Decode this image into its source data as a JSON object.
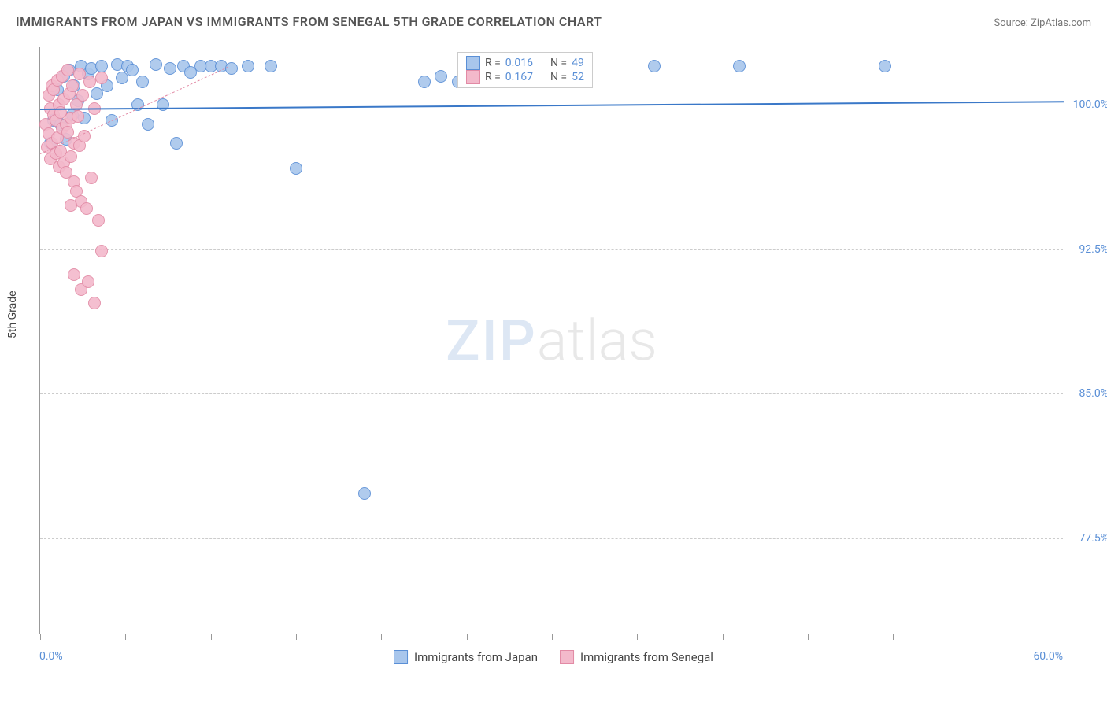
{
  "title": "IMMIGRANTS FROM JAPAN VS IMMIGRANTS FROM SENEGAL 5TH GRADE CORRELATION CHART",
  "source_label": "Source: ZipAtlas.com",
  "y_axis_title": "5th Grade",
  "watermark": {
    "part1": "ZIP",
    "part2": "atlas"
  },
  "chart": {
    "type": "scatter",
    "background_color": "#ffffff",
    "grid_color": "#cccccc",
    "axis_line_color": "#999999",
    "xlim": [
      0.0,
      60.0
    ],
    "ylim": [
      72.5,
      103.0
    ],
    "x_tick_positions": [
      0,
      5,
      10,
      15,
      20,
      25,
      30,
      35,
      40,
      45,
      50,
      55,
      60
    ],
    "x_label_min": "0.0%",
    "x_label_max": "60.0%",
    "y_ticks": [
      {
        "value": 100.0,
        "label": "100.0%"
      },
      {
        "value": 92.5,
        "label": "92.5%"
      },
      {
        "value": 85.0,
        "label": "85.0%"
      },
      {
        "value": 77.5,
        "label": "77.5%"
      }
    ],
    "y_label_color": "#5a8fd6",
    "x_label_color": "#5a8fd6",
    "marker_radius": 8,
    "marker_stroke_width": 1.5,
    "marker_fill_opacity": 0.35,
    "series": [
      {
        "id": "japan",
        "label": "Immigrants from Japan",
        "stroke_color": "#5a8fd6",
        "fill_color": "#a8c6ec",
        "r_value": "0.016",
        "n_value": "49",
        "trend": {
          "x1": 0.0,
          "y1": 99.8,
          "x2": 60.0,
          "y2": 100.2,
          "width": 2.5,
          "dash": "solid",
          "color": "#3a78c8"
        },
        "points": [
          [
            0.6,
            98.0
          ],
          [
            0.8,
            99.2
          ],
          [
            1.0,
            100.8
          ],
          [
            1.2,
            99.0
          ],
          [
            1.4,
            101.5
          ],
          [
            1.5,
            98.2
          ],
          [
            1.7,
            101.8
          ],
          [
            1.9,
            99.5
          ],
          [
            2.0,
            101.0
          ],
          [
            2.2,
            100.2
          ],
          [
            2.4,
            102.0
          ],
          [
            2.6,
            99.3
          ],
          [
            2.8,
            101.6
          ],
          [
            3.0,
            101.9
          ],
          [
            3.3,
            100.6
          ],
          [
            3.6,
            102.0
          ],
          [
            3.9,
            101.0
          ],
          [
            4.2,
            99.2
          ],
          [
            4.5,
            102.1
          ],
          [
            4.8,
            101.4
          ],
          [
            5.1,
            102.0
          ],
          [
            5.4,
            101.8
          ],
          [
            5.7,
            100.0
          ],
          [
            6.0,
            101.2
          ],
          [
            6.3,
            99.0
          ],
          [
            6.8,
            102.1
          ],
          [
            7.2,
            100.0
          ],
          [
            7.6,
            101.9
          ],
          [
            8.0,
            98.0
          ],
          [
            8.4,
            102.0
          ],
          [
            8.8,
            101.7
          ],
          [
            9.4,
            102.0
          ],
          [
            10.0,
            102.0
          ],
          [
            10.6,
            102.0
          ],
          [
            11.2,
            101.9
          ],
          [
            12.2,
            102.0
          ],
          [
            13.5,
            102.0
          ],
          [
            15.0,
            96.7
          ],
          [
            19.0,
            79.8
          ],
          [
            22.5,
            101.2
          ],
          [
            23.5,
            101.5
          ],
          [
            24.5,
            101.2
          ],
          [
            26.0,
            101.8
          ],
          [
            27.5,
            101.5
          ],
          [
            28.5,
            101.8
          ],
          [
            30.0,
            101.3
          ],
          [
            36.0,
            102.0
          ],
          [
            41.0,
            102.0
          ],
          [
            49.5,
            102.0
          ]
        ]
      },
      {
        "id": "senegal",
        "label": "Immigrants from Senegal",
        "stroke_color": "#e28aa5",
        "fill_color": "#f3b9cb",
        "r_value": "0.167",
        "n_value": "52",
        "trend": {
          "x1": 0.0,
          "y1": 97.5,
          "x2": 11.0,
          "y2": 102.0,
          "width": 1.5,
          "dash": "dashed",
          "color": "#e28aa5"
        },
        "points": [
          [
            0.3,
            99.0
          ],
          [
            0.4,
            97.8
          ],
          [
            0.5,
            100.5
          ],
          [
            0.5,
            98.5
          ],
          [
            0.6,
            99.8
          ],
          [
            0.6,
            97.2
          ],
          [
            0.7,
            101.0
          ],
          [
            0.7,
            98.0
          ],
          [
            0.8,
            99.5
          ],
          [
            0.8,
            100.8
          ],
          [
            0.9,
            97.5
          ],
          [
            0.9,
            99.2
          ],
          [
            1.0,
            101.3
          ],
          [
            1.0,
            98.3
          ],
          [
            1.1,
            96.8
          ],
          [
            1.1,
            100.0
          ],
          [
            1.2,
            99.6
          ],
          [
            1.2,
            97.6
          ],
          [
            1.3,
            101.5
          ],
          [
            1.3,
            98.8
          ],
          [
            1.4,
            100.3
          ],
          [
            1.4,
            97.0
          ],
          [
            1.5,
            99.0
          ],
          [
            1.5,
            96.5
          ],
          [
            1.6,
            101.8
          ],
          [
            1.6,
            98.6
          ],
          [
            1.7,
            100.6
          ],
          [
            1.8,
            99.3
          ],
          [
            1.8,
            97.3
          ],
          [
            1.9,
            101.0
          ],
          [
            2.0,
            98.0
          ],
          [
            2.0,
            96.0
          ],
          [
            2.1,
            100.0
          ],
          [
            2.1,
            95.5
          ],
          [
            2.2,
            99.4
          ],
          [
            2.3,
            101.6
          ],
          [
            2.3,
            97.9
          ],
          [
            2.4,
            95.0
          ],
          [
            2.5,
            100.5
          ],
          [
            2.6,
            98.4
          ],
          [
            2.7,
            94.6
          ],
          [
            2.9,
            101.2
          ],
          [
            3.0,
            96.2
          ],
          [
            3.2,
            99.8
          ],
          [
            3.4,
            94.0
          ],
          [
            3.6,
            101.4
          ],
          [
            1.8,
            94.8
          ],
          [
            2.0,
            91.2
          ],
          [
            2.4,
            90.4
          ],
          [
            2.8,
            90.8
          ],
          [
            3.2,
            89.7
          ],
          [
            3.6,
            92.4
          ]
        ]
      }
    ],
    "stats_legend": {
      "r_label": "R =",
      "n_label": "N ="
    },
    "bottom_legend_swatch_size": 18
  }
}
